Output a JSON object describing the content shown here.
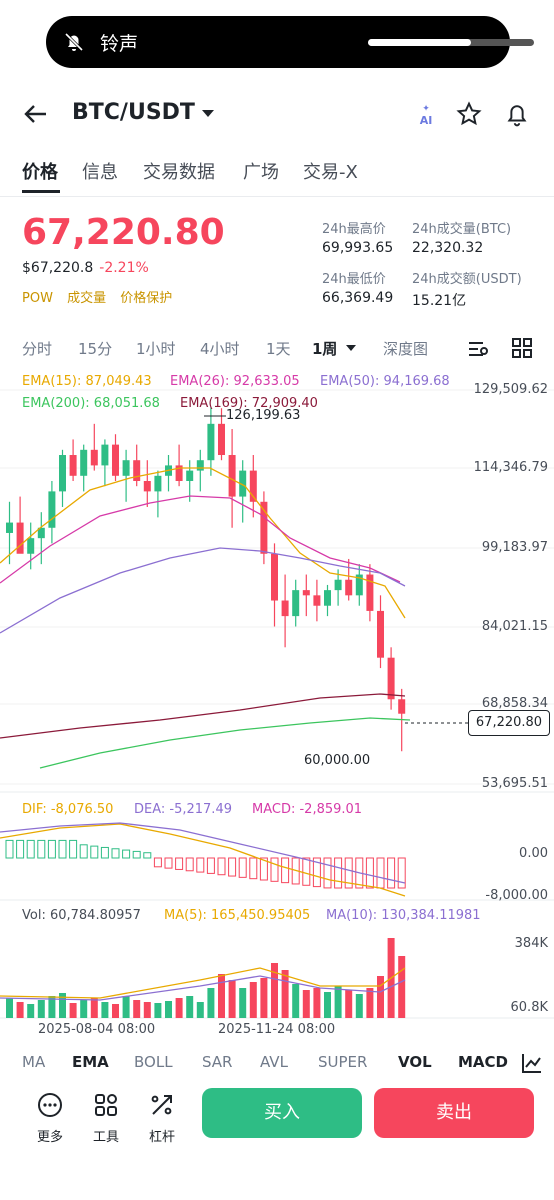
{
  "status_pill": {
    "label": "铃声",
    "volume": 0.62
  },
  "header": {
    "pair": "BTC/USDT",
    "ai_badge": "AI"
  },
  "tabs": [
    "价格",
    "信息",
    "交易数据",
    "广场",
    "交易-X"
  ],
  "ticker": {
    "last_price": "67,220.80",
    "fiat_price": "$67,220.8",
    "change": "-2.21%",
    "tags": [
      "POW",
      "成交量",
      "价格保护"
    ],
    "high_label": "24h最高价",
    "high": "69,993.65",
    "vol_btc_label": "24h成交量(BTC)",
    "vol_btc": "22,320.32",
    "low_label": "24h最低价",
    "low": "66,369.49",
    "vol_usdt_label": "24h成交额(USDT)",
    "vol_usdt": "15.21亿"
  },
  "timeframes": [
    "分时",
    "15分",
    "1小时",
    "4小时",
    "1天",
    "1周",
    "深度图"
  ],
  "colors": {
    "up": "#2ebd85",
    "down": "#f6465d",
    "ema15": "#e8a900",
    "ema26": "#d63aa8",
    "ema50": "#8b6fd1",
    "ema200": "#3cc55e",
    "ema169": "#8b1a3a"
  },
  "chart_data": {
    "type": "candlestick",
    "ema_labels": {
      "ema15": "EMA(15): 87,049.43",
      "ema26": "EMA(26): 92,633.05",
      "ema50": "EMA(50): 94,169.68",
      "ema200": "EMA(200): 68,051.68",
      "ema169": "EMA(169): 72,909.40"
    },
    "y_ticks": [
      "129,509.62",
      "114,346.79",
      "99,183.97",
      "84,021.15",
      "68,858.34",
      "53,695.51"
    ],
    "high_mark": "126,199.63",
    "low_mark": "60,000.00",
    "current_price": "67,220.80",
    "x_ticks": [
      "2025-08-04 08:00",
      "2025-11-24 08:00"
    ],
    "macd": {
      "dif": "DIF: -8,076.50",
      "dea": "DEA: -5,217.49",
      "macd": "MACD: -2,859.01",
      "y_ticks": [
        "0.00",
        "-8,000.00"
      ]
    },
    "volume": {
      "vol": "Vol: 60,784.80957",
      "ma5": "MA(5): 165,450.95405",
      "ma10": "MA(10): 130,384.11981",
      "y_ticks": [
        "384K",
        "60.8K"
      ]
    }
  },
  "indicators": [
    "MA",
    "EMA",
    "BOLL",
    "SAR",
    "AVL",
    "SUPER",
    "VOL",
    "MACD"
  ],
  "bottom": {
    "more": "更多",
    "tools": "工具",
    "leverage": "杠杆",
    "buy": "买入",
    "sell": "卖出"
  }
}
